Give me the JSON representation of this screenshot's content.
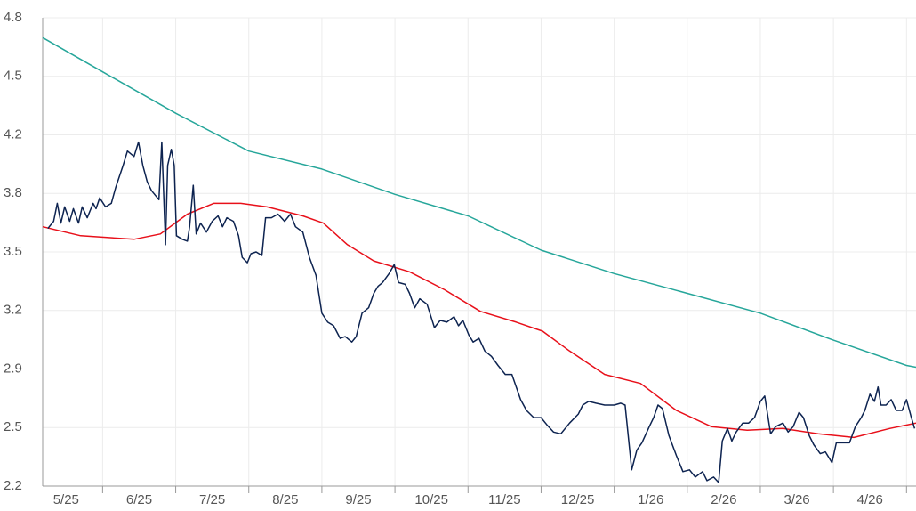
{
  "chart_data": {
    "type": "line",
    "ylim": [
      2.2,
      4.8
    ],
    "yticks": [
      4.8,
      {
        "value": 4.475,
        "label": "4.5"
      },
      {
        "value": 4.15,
        "label": "4.2"
      },
      {
        "value": 3.825,
        "label": "3.8"
      },
      3.5,
      {
        "value": 3.175,
        "label": "3.2"
      },
      {
        "value": 2.85,
        "label": "2.9"
      },
      {
        "value": 2.525,
        "label": "2.5"
      },
      2.2
    ],
    "xlim": [
      0.18,
      12.13
    ],
    "xticks": [
      {
        "value": 0.5,
        "label": "5/25"
      },
      {
        "value": 1.5,
        "label": "6/25"
      },
      {
        "value": 2.5,
        "label": "7/25"
      },
      {
        "value": 3.5,
        "label": "8/25"
      },
      {
        "value": 4.5,
        "label": "9/25"
      },
      {
        "value": 5.5,
        "label": "10/25"
      },
      {
        "value": 6.5,
        "label": "11/25"
      },
      {
        "value": 7.5,
        "label": "12/25"
      },
      {
        "value": 8.5,
        "label": "1/26"
      },
      {
        "value": 9.5,
        "label": "2/26"
      },
      {
        "value": 10.5,
        "label": "3/26"
      },
      {
        "value": 11.5,
        "label": "4/26"
      }
    ],
    "grid": true,
    "series": [
      {
        "color": "#26a69a",
        "x": [
          0.18,
          1,
          2,
          3,
          4,
          5,
          6,
          7,
          8,
          9,
          10,
          11,
          12,
          12.13
        ],
        "values": [
          4.69,
          4.5,
          4.27,
          4.06,
          3.96,
          3.82,
          3.7,
          3.51,
          3.38,
          3.27,
          3.16,
          3.01,
          2.87,
          2.86
        ]
      },
      {
        "color": "#e8101a",
        "x": [
          0.18,
          0.7,
          1.43,
          1.79,
          2.16,
          2.52,
          2.89,
          3.25,
          3.74,
          4.02,
          4.35,
          4.71,
          5.2,
          5.68,
          6.17,
          6.66,
          7.02,
          7.39,
          7.87,
          8.36,
          8.85,
          9.33,
          9.82,
          10.31,
          10.79,
          11.28,
          11.77,
          12.13
        ],
        "values": [
          3.64,
          3.59,
          3.57,
          3.6,
          3.71,
          3.77,
          3.77,
          3.75,
          3.7,
          3.66,
          3.54,
          3.45,
          3.39,
          3.29,
          3.17,
          3.11,
          3.06,
          2.95,
          2.82,
          2.77,
          2.62,
          2.53,
          2.51,
          2.52,
          2.49,
          2.47,
          2.52,
          2.55
        ]
      },
      {
        "color": "#0d2350",
        "x": [
          0.25,
          0.33,
          0.38,
          0.43,
          0.48,
          0.55,
          0.6,
          0.67,
          0.72,
          0.79,
          0.87,
          0.91,
          0.96,
          1.04,
          1.12,
          1.18,
          1.28,
          1.34,
          1.43,
          1.49,
          1.55,
          1.61,
          1.67,
          1.77,
          1.81,
          1.86,
          1.89,
          1.94,
          1.98,
          2.01,
          2.09,
          2.16,
          2.19,
          2.24,
          2.28,
          2.34,
          2.42,
          2.5,
          2.58,
          2.64,
          2.7,
          2.79,
          2.86,
          2.91,
          2.98,
          3.03,
          3.1,
          3.18,
          3.23,
          3.31,
          3.4,
          3.49,
          3.57,
          3.64,
          3.74,
          3.83,
          3.92,
          4.0,
          4.08,
          4.16,
          4.25,
          4.32,
          4.41,
          4.47,
          4.55,
          4.64,
          4.71,
          4.77,
          4.83,
          4.92,
          4.99,
          5.05,
          5.14,
          5.2,
          5.27,
          5.34,
          5.44,
          5.54,
          5.62,
          5.71,
          5.81,
          5.87,
          5.93,
          6.01,
          6.07,
          6.15,
          6.23,
          6.32,
          6.41,
          6.51,
          6.6,
          6.66,
          6.72,
          6.8,
          6.9,
          7.0,
          7.08,
          7.17,
          7.27,
          7.39,
          7.51,
          7.57,
          7.65,
          7.75,
          7.87,
          8.0,
          8.09,
          8.15,
          8.24,
          8.31,
          8.38,
          8.48,
          8.54,
          8.6,
          8.66,
          8.75,
          8.85,
          8.94,
          9.03,
          9.11,
          9.21,
          9.27,
          9.36,
          9.43,
          9.48,
          9.55,
          9.61,
          9.67,
          9.76,
          9.84,
          9.92,
          10.0,
          10.06,
          10.14,
          10.21,
          10.31,
          10.38,
          10.45,
          10.53,
          10.59,
          10.67,
          10.73,
          10.82,
          10.89,
          10.98,
          11.04,
          11.13,
          11.22,
          11.3,
          11.38,
          11.43,
          11.5,
          11.56,
          11.61,
          11.65,
          11.72,
          11.79,
          11.86,
          11.94,
          12.0,
          12.06,
          12.11
        ],
        "values": [
          3.63,
          3.67,
          3.77,
          3.66,
          3.75,
          3.67,
          3.74,
          3.66,
          3.75,
          3.69,
          3.77,
          3.74,
          3.8,
          3.75,
          3.77,
          3.86,
          3.98,
          4.06,
          4.03,
          4.11,
          3.98,
          3.89,
          3.84,
          3.79,
          4.11,
          3.54,
          3.98,
          4.07,
          3.98,
          3.59,
          3.57,
          3.56,
          3.64,
          3.87,
          3.6,
          3.66,
          3.61,
          3.67,
          3.7,
          3.64,
          3.69,
          3.67,
          3.59,
          3.47,
          3.44,
          3.49,
          3.5,
          3.48,
          3.69,
          3.69,
          3.71,
          3.67,
          3.71,
          3.64,
          3.61,
          3.47,
          3.37,
          3.16,
          3.11,
          3.09,
          3.02,
          3.03,
          3.0,
          3.03,
          3.16,
          3.19,
          3.27,
          3.31,
          3.33,
          3.38,
          3.43,
          3.33,
          3.32,
          3.27,
          3.19,
          3.24,
          3.21,
          3.08,
          3.12,
          3.11,
          3.14,
          3.09,
          3.12,
          3.04,
          3.0,
          3.02,
          2.95,
          2.92,
          2.87,
          2.82,
          2.82,
          2.75,
          2.68,
          2.62,
          2.58,
          2.58,
          2.54,
          2.5,
          2.49,
          2.55,
          2.6,
          2.65,
          2.67,
          2.66,
          2.65,
          2.65,
          2.66,
          2.65,
          2.29,
          2.4,
          2.44,
          2.53,
          2.58,
          2.65,
          2.63,
          2.48,
          2.37,
          2.28,
          2.29,
          2.25,
          2.28,
          2.23,
          2.25,
          2.22,
          2.45,
          2.52,
          2.45,
          2.5,
          2.55,
          2.55,
          2.58,
          2.67,
          2.7,
          2.49,
          2.53,
          2.55,
          2.5,
          2.53,
          2.61,
          2.58,
          2.48,
          2.43,
          2.38,
          2.39,
          2.33,
          2.44,
          2.44,
          2.44,
          2.53,
          2.58,
          2.62,
          2.71,
          2.67,
          2.75,
          2.65,
          2.65,
          2.68,
          2.62,
          2.62,
          2.68,
          2.59,
          2.52
        ]
      }
    ]
  }
}
